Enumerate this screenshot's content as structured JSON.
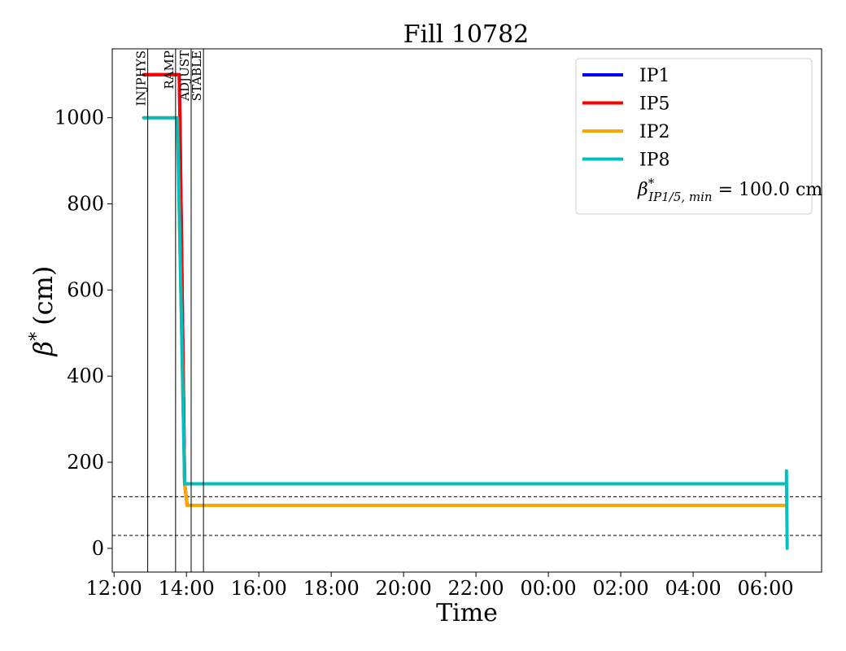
{
  "chart_data": {
    "type": "line",
    "title": "Fill 10782",
    "xlabel": "Time",
    "ylabel_symbol": "β",
    "ylabel_sup": "*",
    "ylabel_unit": "(cm)",
    "x_unit": "hours since 12:00 (day 1)",
    "xlim": [
      -0.05,
      19.55
    ],
    "ylim": [
      -55,
      1160
    ],
    "xticks": [
      {
        "v": 0,
        "label": "12:00"
      },
      {
        "v": 2,
        "label": "14:00"
      },
      {
        "v": 4,
        "label": "16:00"
      },
      {
        "v": 6,
        "label": "18:00"
      },
      {
        "v": 8,
        "label": "20:00"
      },
      {
        "v": 10,
        "label": "22:00"
      },
      {
        "v": 12,
        "label": "00:00"
      },
      {
        "v": 14,
        "label": "02:00"
      },
      {
        "v": 16,
        "label": "04:00"
      },
      {
        "v": 18,
        "label": "06:00"
      }
    ],
    "yticks": [
      0,
      200,
      400,
      600,
      800,
      1000
    ],
    "series": [
      {
        "name": "IP1",
        "color": "#0000ff",
        "points": [
          [
            0.82,
            1100
          ],
          [
            1.8,
            1100
          ],
          [
            1.82,
            1000
          ],
          [
            1.95,
            150
          ],
          [
            2.02,
            100
          ],
          [
            18.55,
            100
          ]
        ]
      },
      {
        "name": "IP5",
        "color": "#ff0000",
        "points": [
          [
            0.82,
            1100
          ],
          [
            1.8,
            1100
          ],
          [
            1.82,
            1000
          ],
          [
            1.95,
            150
          ],
          [
            2.02,
            100
          ],
          [
            18.55,
            100
          ]
        ]
      },
      {
        "name": "IP2",
        "color": "#ffa500",
        "points": [
          [
            0.82,
            1000
          ],
          [
            1.75,
            1000
          ],
          [
            1.95,
            150
          ],
          [
            2.02,
            100
          ],
          [
            18.55,
            100
          ]
        ]
      },
      {
        "name": "IP8",
        "color": "#00bfbf",
        "points": [
          [
            0.82,
            1000
          ],
          [
            1.75,
            1000
          ],
          [
            1.95,
            150
          ],
          [
            18.58,
            150
          ],
          [
            18.58,
            180
          ],
          [
            18.6,
            0
          ]
        ]
      }
    ],
    "reference_lines": [
      120,
      30
    ],
    "phases": [
      {
        "label": "INJPHYS",
        "x": 0.93
      },
      {
        "label": "RAMP",
        "x": 1.7
      },
      {
        "label": "ADJUST",
        "x": 2.13
      },
      {
        "label": "STABLE",
        "x": 2.47
      }
    ],
    "legend": {
      "position": "top-right",
      "entries": [
        "IP1",
        "IP5",
        "IP2",
        "IP8"
      ],
      "note_symbol": "β",
      "note_sup": "*",
      "note_sub": "IP1/5, min",
      "note_value": " = 100.0 cm"
    },
    "grid": false
  }
}
